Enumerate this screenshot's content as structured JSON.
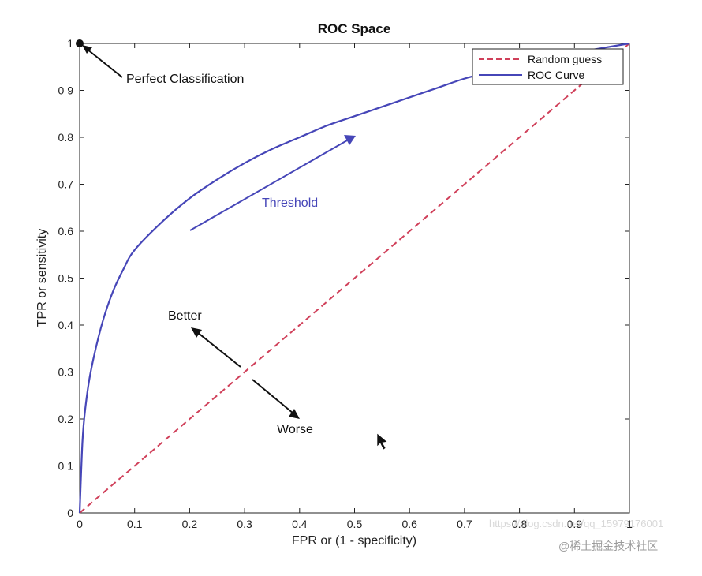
{
  "chart_data": {
    "type": "line",
    "title": "ROC Space",
    "xlabel": "FPR or (1 - specificity)",
    "ylabel": "TPR or sensitivity",
    "xlim": [
      0,
      1
    ],
    "ylim": [
      0,
      1
    ],
    "x_ticks": [
      "0",
      "0.1",
      "0.2",
      "0.3",
      "0.4",
      "0.5",
      "0.6",
      "0.7",
      "0.8",
      "0.9",
      "1"
    ],
    "y_ticks": [
      "0",
      "0 1",
      "0.2",
      "0.3",
      "0.4",
      "0.5",
      "0.6",
      "0.7",
      "0.8",
      "0 9",
      "1"
    ],
    "grid": false,
    "legend_position": "top-right",
    "series": [
      {
        "name": "Random guess",
        "style": "dashed",
        "color": "#d0405a",
        "x": [
          0,
          1
        ],
        "y": [
          0,
          1
        ]
      },
      {
        "name": "ROC Curve",
        "style": "solid",
        "color": "#4646b8",
        "x": [
          0,
          0.005,
          0.01,
          0.02,
          0.04,
          0.06,
          0.08,
          0.1,
          0.15,
          0.2,
          0.25,
          0.3,
          0.35,
          0.4,
          0.45,
          0.5,
          0.55,
          0.6,
          0.65,
          0.7,
          0.75,
          0.8,
          0.85,
          0.9,
          0.95,
          1.0
        ],
        "y": [
          0,
          0.15,
          0.22,
          0.3,
          0.4,
          0.47,
          0.52,
          0.56,
          0.62,
          0.67,
          0.71,
          0.745,
          0.775,
          0.8,
          0.825,
          0.845,
          0.865,
          0.885,
          0.905,
          0.925,
          0.94,
          0.955,
          0.97,
          0.98,
          0.99,
          1.0
        ]
      }
    ],
    "annotations": [
      {
        "text": "Perfect Classification",
        "color": "#111111"
      },
      {
        "text": "Threshold",
        "color": "#4646b8"
      },
      {
        "text": "Better",
        "color": "#111111"
      },
      {
        "text": "Worse",
        "color": "#111111"
      }
    ]
  },
  "watermark": "@稀土掘金技术社区",
  "faint_watermark": "https://blog.csdn.net/qq_15979176001",
  "colors": {
    "random": "#d0405a",
    "roc": "#4646b8",
    "axis": "#222222"
  }
}
